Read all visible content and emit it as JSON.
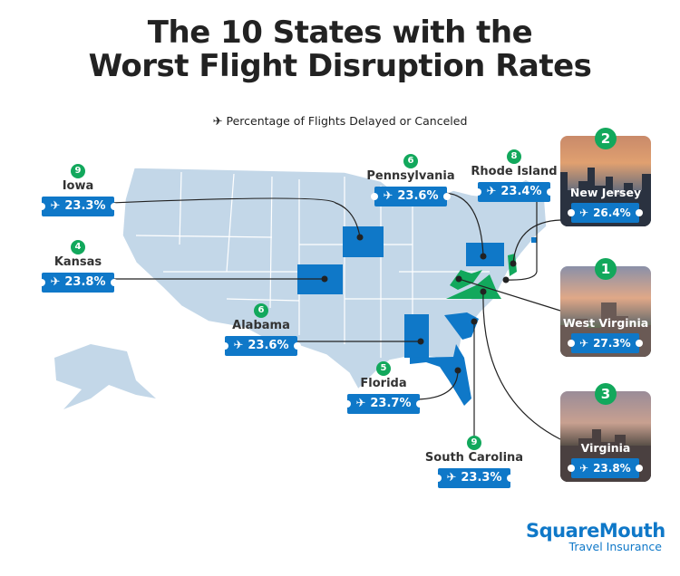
{
  "title": {
    "line1": "The 10 States with the",
    "line2": "Worst Flight Disruption Rates"
  },
  "subtitle": {
    "icon": "airplane-icon",
    "text": "Percentage of Flights Delayed or Canceled"
  },
  "colors": {
    "accent_blue": "#0f78c8",
    "rank_green": "#12a85c",
    "map_base": "#c3d7e8",
    "top3_state": "#12a85c"
  },
  "states": [
    {
      "rank": "9",
      "name": "Iowa",
      "value": "23.3%"
    },
    {
      "rank": "4",
      "name": "Kansas",
      "value": "23.8%"
    },
    {
      "rank": "6",
      "name": "Alabama",
      "value": "23.6%"
    },
    {
      "rank": "5",
      "name": "Florida",
      "value": "23.7%"
    },
    {
      "rank": "9",
      "name": "South Carolina",
      "value": "23.3%"
    },
    {
      "rank": "6",
      "name": "Pennsylvania",
      "value": "23.6%"
    },
    {
      "rank": "8",
      "name": "Rhode Island",
      "value": "23.4%"
    }
  ],
  "featured": [
    {
      "rank": "2",
      "name": "New Jersey",
      "value": "26.4%"
    },
    {
      "rank": "1",
      "name": "West Virginia",
      "value": "27.3%"
    },
    {
      "rank": "3",
      "name": "Virginia",
      "value": "23.8%"
    }
  ],
  "logo": {
    "brand": "SquareMouth",
    "tagline": "Travel Insurance"
  }
}
